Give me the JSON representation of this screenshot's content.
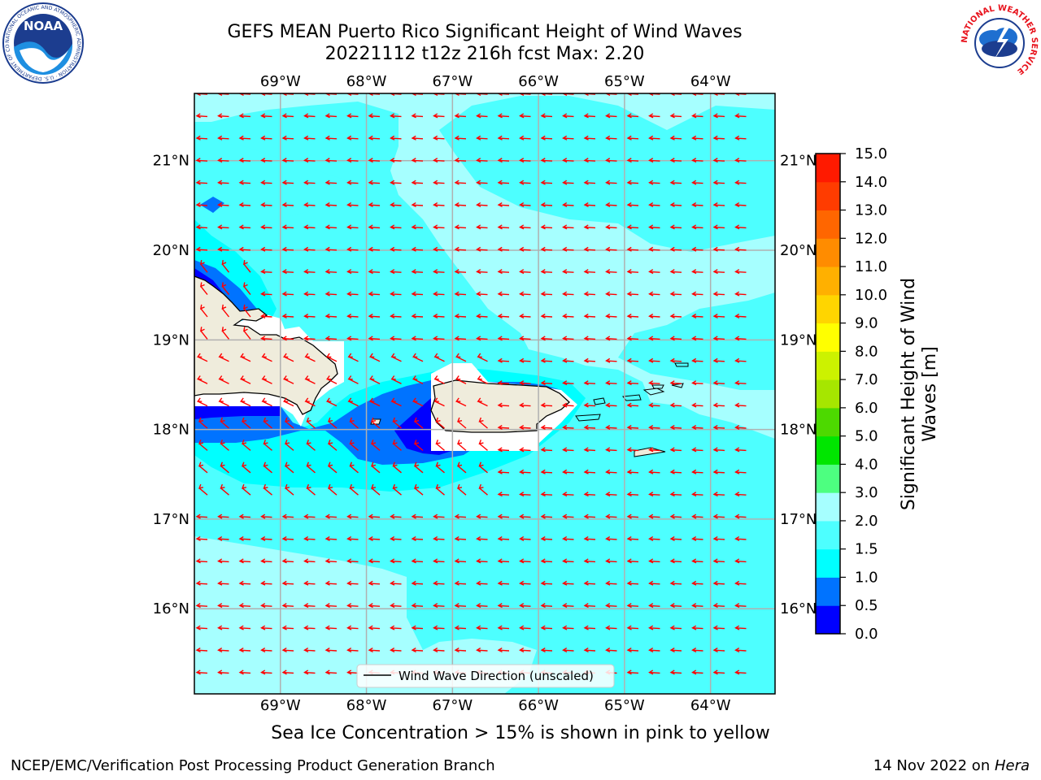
{
  "header": {
    "title_line1": "GEFS MEAN Puerto Rico Significant Height of Wind Waves",
    "title_line2": "20221112 t12z 216h fcst   Max: 2.20"
  },
  "map": {
    "lon_labels": [
      "69°W",
      "68°W",
      "67°W",
      "66°W",
      "65°W",
      "64°W"
    ],
    "lat_labels": [
      "21°N",
      "20°N",
      "19°N",
      "18°N",
      "17°N",
      "16°N"
    ],
    "lon_values": [
      -69,
      -68,
      -67,
      -66,
      -65,
      -64
    ],
    "lat_values": [
      21,
      20,
      19,
      18,
      17,
      16
    ],
    "extent": {
      "lon_min": -70,
      "lon_max": -63.25,
      "lat_min": 15.05,
      "lat_max": 21.75
    },
    "legend_label": "Wind Wave Direction (unscaled)",
    "arrow_color": "#ff0000",
    "land_color": "#efecdc",
    "field_regions": [
      {
        "level": "1.5-2.0",
        "color": "#4dffff"
      },
      {
        "level": "2.0-3.0",
        "color": "#a6ffff"
      },
      {
        "level": "1.0-1.5",
        "color": "#00ffff"
      },
      {
        "level": "0.5-1.0",
        "color": "#0073ff"
      },
      {
        "level": "0.0-0.5",
        "color": "#0000ff"
      }
    ]
  },
  "colorbar": {
    "label": "Significant Height of Wind Waves [m]",
    "label_line1": "Significant Height of Wind",
    "label_line2": "Waves [m]",
    "ticks": [
      "0.0",
      "0.5",
      "1.0",
      "1.5",
      "2.0",
      "3.0",
      "4.0",
      "5.0",
      "6.0",
      "7.0",
      "8.0",
      "9.0",
      "10.0",
      "11.0",
      "12.0",
      "13.0",
      "14.0",
      "15.0"
    ],
    "colors": [
      "#0000ff",
      "#0073ff",
      "#00ffff",
      "#4dffff",
      "#a6ffff",
      "#4dff80",
      "#00e600",
      "#4dd900",
      "#a6e600",
      "#ccf200",
      "#ffff00",
      "#ffd500",
      "#ffb000",
      "#ff8c00",
      "#ff6600",
      "#ff3c00",
      "#ff1a00"
    ]
  },
  "footer": {
    "note": "Sea Ice Concentration > 15% is shown in pink to yellow",
    "left": "NCEP/EMC/Verification Post Processing Product Generation Branch",
    "right_date": "14 Nov 2022 on ",
    "right_host": "Hera"
  },
  "logos": {
    "noaa_text": "NOAA",
    "noaa_ring": "NATIONAL OCEANIC AND ATMOSPHERIC ADMINISTRATION · U.S. DEPARTMENT OF COMMERCE",
    "nws_ring": "NATIONAL WEATHER SERVICE"
  }
}
